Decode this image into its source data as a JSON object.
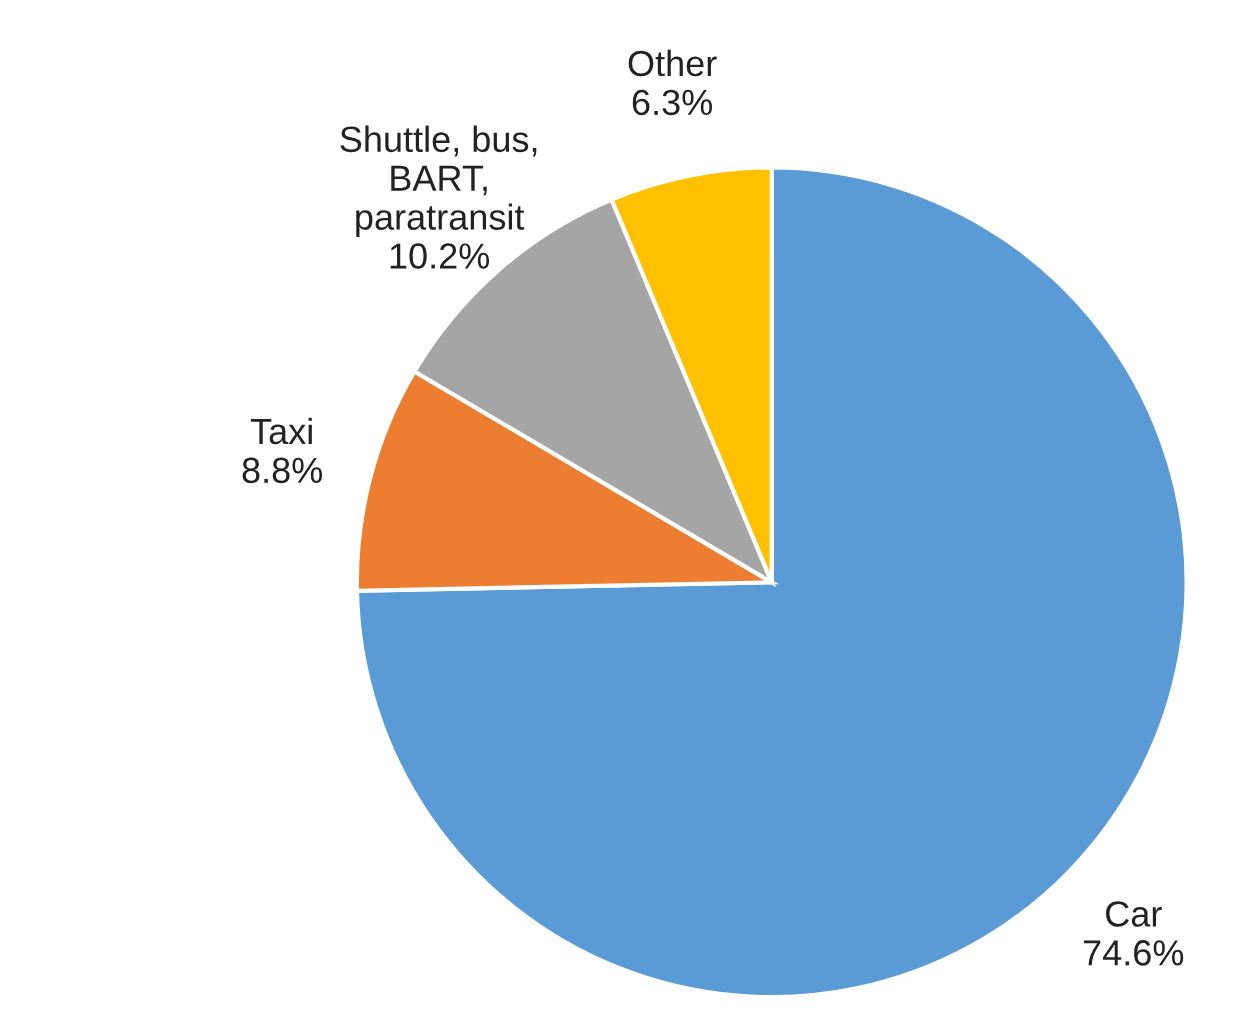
{
  "chart_data": {
    "type": "pie",
    "categories": [
      "Car",
      "Taxi",
      "Shuttle, bus,\nBART,\nparatransit",
      "Other"
    ],
    "values": [
      74.6,
      8.8,
      10.2,
      6.3
    ],
    "value_labels": [
      "74.6%",
      "8.8%",
      "10.2%",
      "6.3%"
    ],
    "colors": [
      "#5b9bd5",
      "#ed7d31",
      "#a5a5a5",
      "#ffc000"
    ]
  }
}
